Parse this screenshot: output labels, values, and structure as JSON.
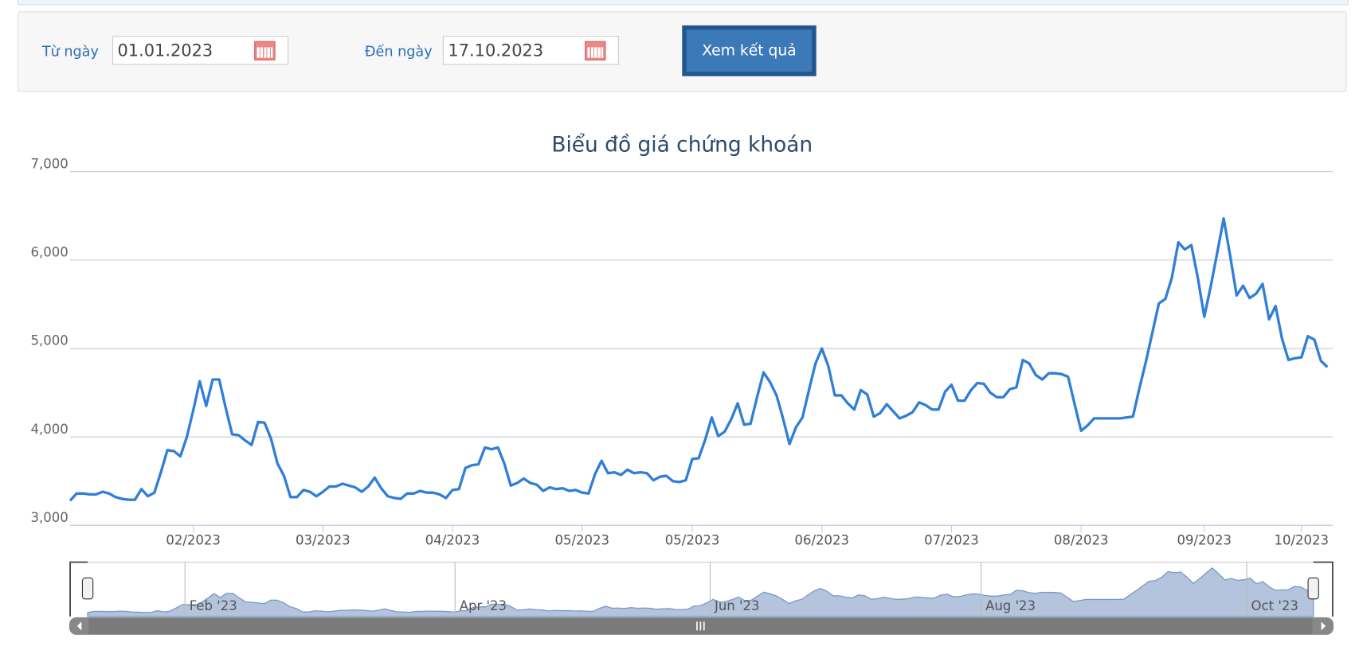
{
  "form": {
    "from_label": "Từ ngày",
    "from_value": "01.01.2023",
    "to_label": "Đến ngày",
    "to_value": "17.10.2023",
    "button": "Xem kết quả"
  },
  "chart_data": {
    "type": "line",
    "title": "Biểu đồ giá chứng khoán",
    "color": "#2f7ed8",
    "grid": true,
    "ylim": [
      3000,
      7000
    ],
    "yticks": [
      {
        "value": 3000,
        "label": "3,000"
      },
      {
        "value": 4000,
        "label": "4,000"
      },
      {
        "value": 5000,
        "label": "5,000"
      },
      {
        "value": 6000,
        "label": "6,000"
      },
      {
        "value": 7000,
        "label": "7,000"
      }
    ],
    "categories": [
      null,
      null,
      null,
      null,
      null,
      null,
      null,
      null,
      null,
      null,
      null,
      null,
      null,
      null,
      null,
      null,
      null,
      null,
      null,
      "02/2023",
      null,
      null,
      null,
      null,
      null,
      null,
      null,
      null,
      null,
      null,
      null,
      null,
      null,
      null,
      null,
      null,
      null,
      null,
      null,
      "03/2023",
      null,
      null,
      null,
      null,
      null,
      null,
      null,
      null,
      null,
      null,
      null,
      null,
      null,
      null,
      null,
      null,
      null,
      null,
      null,
      "04/2023",
      null,
      null,
      null,
      null,
      null,
      null,
      null,
      null,
      null,
      null,
      null,
      null,
      null,
      null,
      null,
      null,
      null,
      null,
      null,
      "05/2023",
      null,
      null,
      null,
      null,
      null,
      null,
      null,
      null,
      null,
      null,
      null,
      null,
      null,
      null,
      null,
      null,
      "05/2023",
      null,
      null,
      null,
      null,
      null,
      null,
      null,
      null,
      null,
      null,
      null,
      null,
      null,
      null,
      null,
      null,
      null,
      null,
      null,
      "06/2023",
      null,
      null,
      null,
      null,
      null,
      null,
      null,
      null,
      null,
      null,
      null,
      null,
      null,
      null,
      null,
      null,
      null,
      null,
      null,
      "07/2023",
      null,
      null,
      null,
      null,
      null,
      null,
      null,
      null,
      null,
      null,
      null,
      null,
      null,
      null,
      null,
      null,
      null,
      null,
      null,
      "08/2023",
      null,
      null,
      null,
      null,
      null,
      null,
      null,
      null,
      null,
      null,
      null,
      null,
      null,
      null,
      null,
      null,
      null,
      null,
      "09/2023",
      null,
      null,
      null,
      null,
      null,
      null,
      null,
      null,
      null,
      null,
      null,
      null,
      null,
      null,
      "10/2023",
      null,
      null,
      null,
      null
    ],
    "values": [
      3280,
      3360,
      3360,
      3350,
      3350,
      3380,
      3360,
      3320,
      3300,
      3290,
      3290,
      3410,
      3330,
      3370,
      3600,
      3850,
      3840,
      3780,
      4000,
      4300,
      4630,
      4350,
      4650,
      4650,
      4330,
      4030,
      4020,
      3960,
      3910,
      4170,
      4160,
      3980,
      3700,
      3560,
      3320,
      3320,
      3400,
      3380,
      3330,
      3380,
      3440,
      3440,
      3470,
      3450,
      3430,
      3380,
      3440,
      3540,
      3420,
      3330,
      3310,
      3300,
      3360,
      3360,
      3390,
      3370,
      3370,
      3350,
      3310,
      3400,
      3410,
      3650,
      3680,
      3690,
      3880,
      3860,
      3880,
      3700,
      3450,
      3480,
      3530,
      3480,
      3460,
      3390,
      3430,
      3410,
      3420,
      3390,
      3400,
      3370,
      3360,
      3580,
      3730,
      3590,
      3600,
      3570,
      3630,
      3590,
      3600,
      3590,
      3510,
      3550,
      3560,
      3500,
      3490,
      3510,
      3750,
      3760,
      3970,
      4220,
      4010,
      4060,
      4200,
      4380,
      4140,
      4150,
      4450,
      4730,
      4620,
      4470,
      4210,
      3920,
      4110,
      4220,
      4530,
      4830,
      5000,
      4800,
      4470,
      4470,
      4380,
      4310,
      4530,
      4480,
      4230,
      4270,
      4370,
      4290,
      4210,
      4240,
      4280,
      4390,
      4360,
      4310,
      4310,
      4510,
      4590,
      4410,
      4410,
      4530,
      4610,
      4600,
      4500,
      4450,
      4450,
      4540,
      4560,
      4870,
      4830,
      4700,
      4650,
      4720,
      4720,
      4710,
      4680,
      4370,
      4070,
      4130,
      4210,
      4210,
      4210,
      4210,
      4210,
      4220,
      4230,
      4550,
      4850,
      5180,
      5510,
      5560,
      5800,
      6200,
      6120,
      6170,
      5800,
      5360,
      5700,
      6080,
      6470,
      6050,
      5600,
      5710,
      5570,
      5620,
      5730,
      5330,
      5480,
      5110,
      4870,
      4890,
      4900,
      5140,
      5100,
      4860,
      4790
    ]
  },
  "navigator": {
    "labels": [
      "Feb '23",
      "Apr '23",
      "Jun '23",
      "Aug '23",
      "Oct '23"
    ]
  }
}
